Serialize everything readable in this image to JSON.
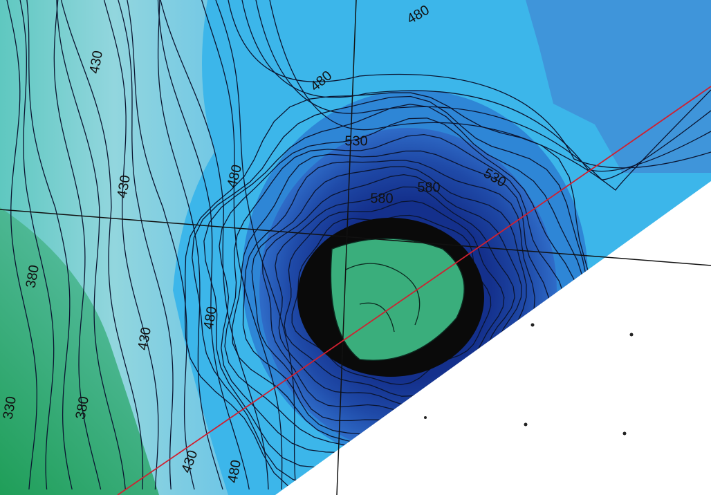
{
  "contour_labels": [
    "430",
    "480",
    "480",
    "430",
    "480",
    "530",
    "530",
    "580",
    "580",
    "380",
    "480",
    "430",
    "380",
    "330",
    "430",
    "480"
  ]
}
